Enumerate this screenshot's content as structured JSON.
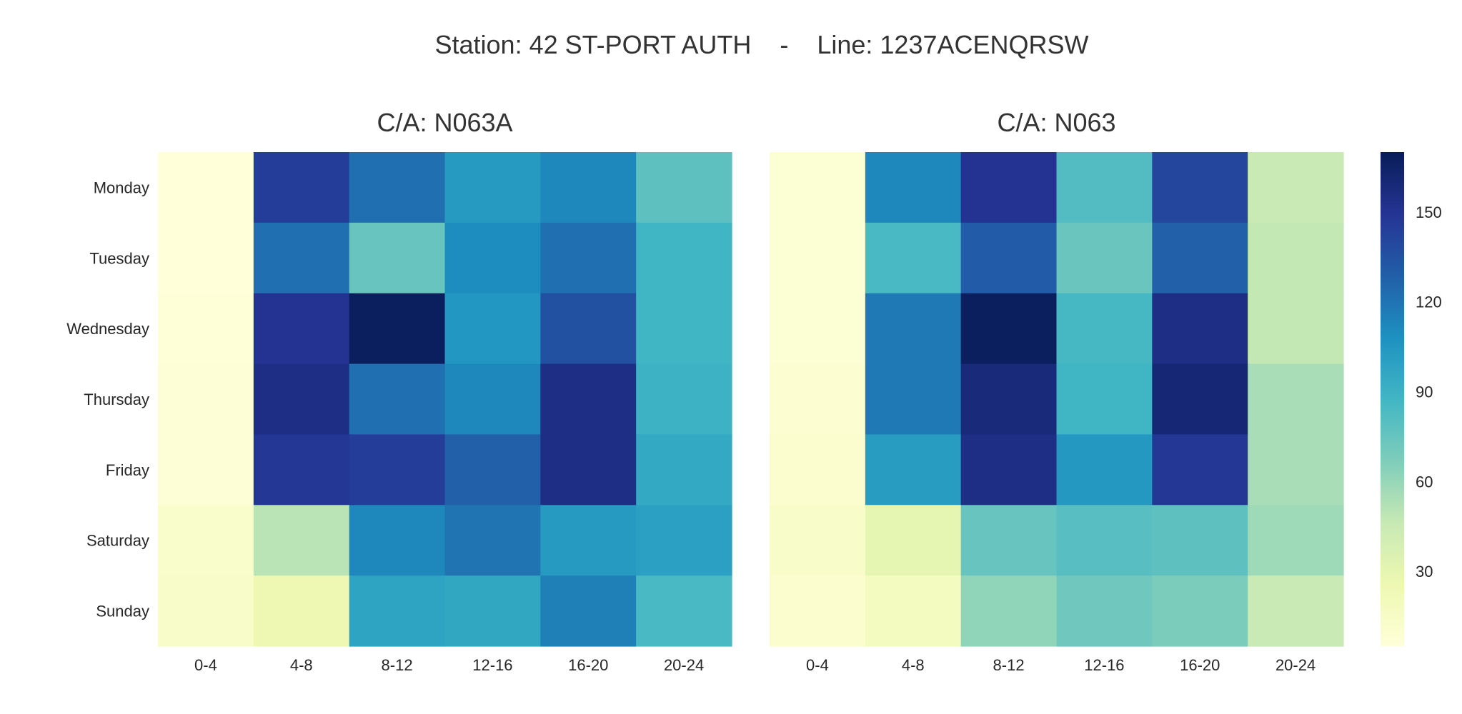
{
  "chart_data": {
    "type": "heatmap",
    "title": "Station: 42 ST-PORT AUTH    -    Line: 1237ACENQRSW",
    "rows": [
      "Monday",
      "Tuesday",
      "Wednesday",
      "Thursday",
      "Friday",
      "Saturday",
      "Sunday"
    ],
    "columns": [
      "0-4",
      "4-8",
      "8-12",
      "12-16",
      "16-20",
      "20-24"
    ],
    "colormap": "YlGnBu",
    "colorbar": {
      "min": 5,
      "max": 170,
      "ticks": [
        30,
        60,
        90,
        120,
        150
      ]
    },
    "panels": [
      {
        "title": "C/A: N063A",
        "values": [
          [
            5,
            145,
            122,
            103,
            112,
            78
          ],
          [
            5,
            122,
            75,
            110,
            122,
            88
          ],
          [
            6,
            150,
            168,
            105,
            135,
            88
          ],
          [
            7,
            155,
            122,
            112,
            155,
            90
          ],
          [
            7,
            148,
            145,
            128,
            155,
            95
          ],
          [
            12,
            50,
            112,
            120,
            103,
            100
          ],
          [
            14,
            25,
            98,
            96,
            115,
            85
          ]
        ]
      },
      {
        "title": "C/A: N063",
        "values": [
          [
            8,
            112,
            150,
            82,
            140,
            45
          ],
          [
            8,
            85,
            130,
            74,
            128,
            47
          ],
          [
            8,
            118,
            168,
            86,
            155,
            47
          ],
          [
            9,
            118,
            158,
            88,
            160,
            55
          ],
          [
            10,
            102,
            155,
            104,
            148,
            55
          ],
          [
            14,
            30,
            75,
            80,
            78,
            58
          ],
          [
            10,
            18,
            62,
            72,
            68,
            45
          ]
        ]
      }
    ]
  }
}
